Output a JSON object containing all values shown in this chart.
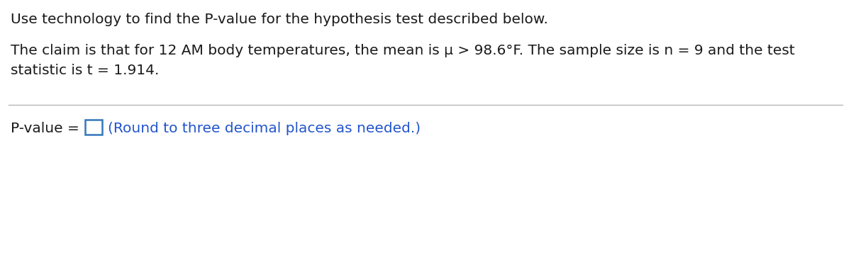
{
  "line1": "Use technology to find the P-value for the hypothesis test described below.",
  "line2": "The claim is that for 12 AM body temperatures, the mean is μ > 98.6°F. The sample size is n = 9 and the test",
  "line3": "statistic is t = 1.914.",
  "pvalue_label": "P-value = ",
  "pvalue_hint": "(Round to three decimal places as needed.)",
  "background_color": "#ffffff",
  "text_color_black": "#1a1a1a",
  "text_color_blue": "#2255cc",
  "divider_color": "#b0b0b0",
  "box_edge_color": "#3377bb",
  "font_size": 14.5
}
